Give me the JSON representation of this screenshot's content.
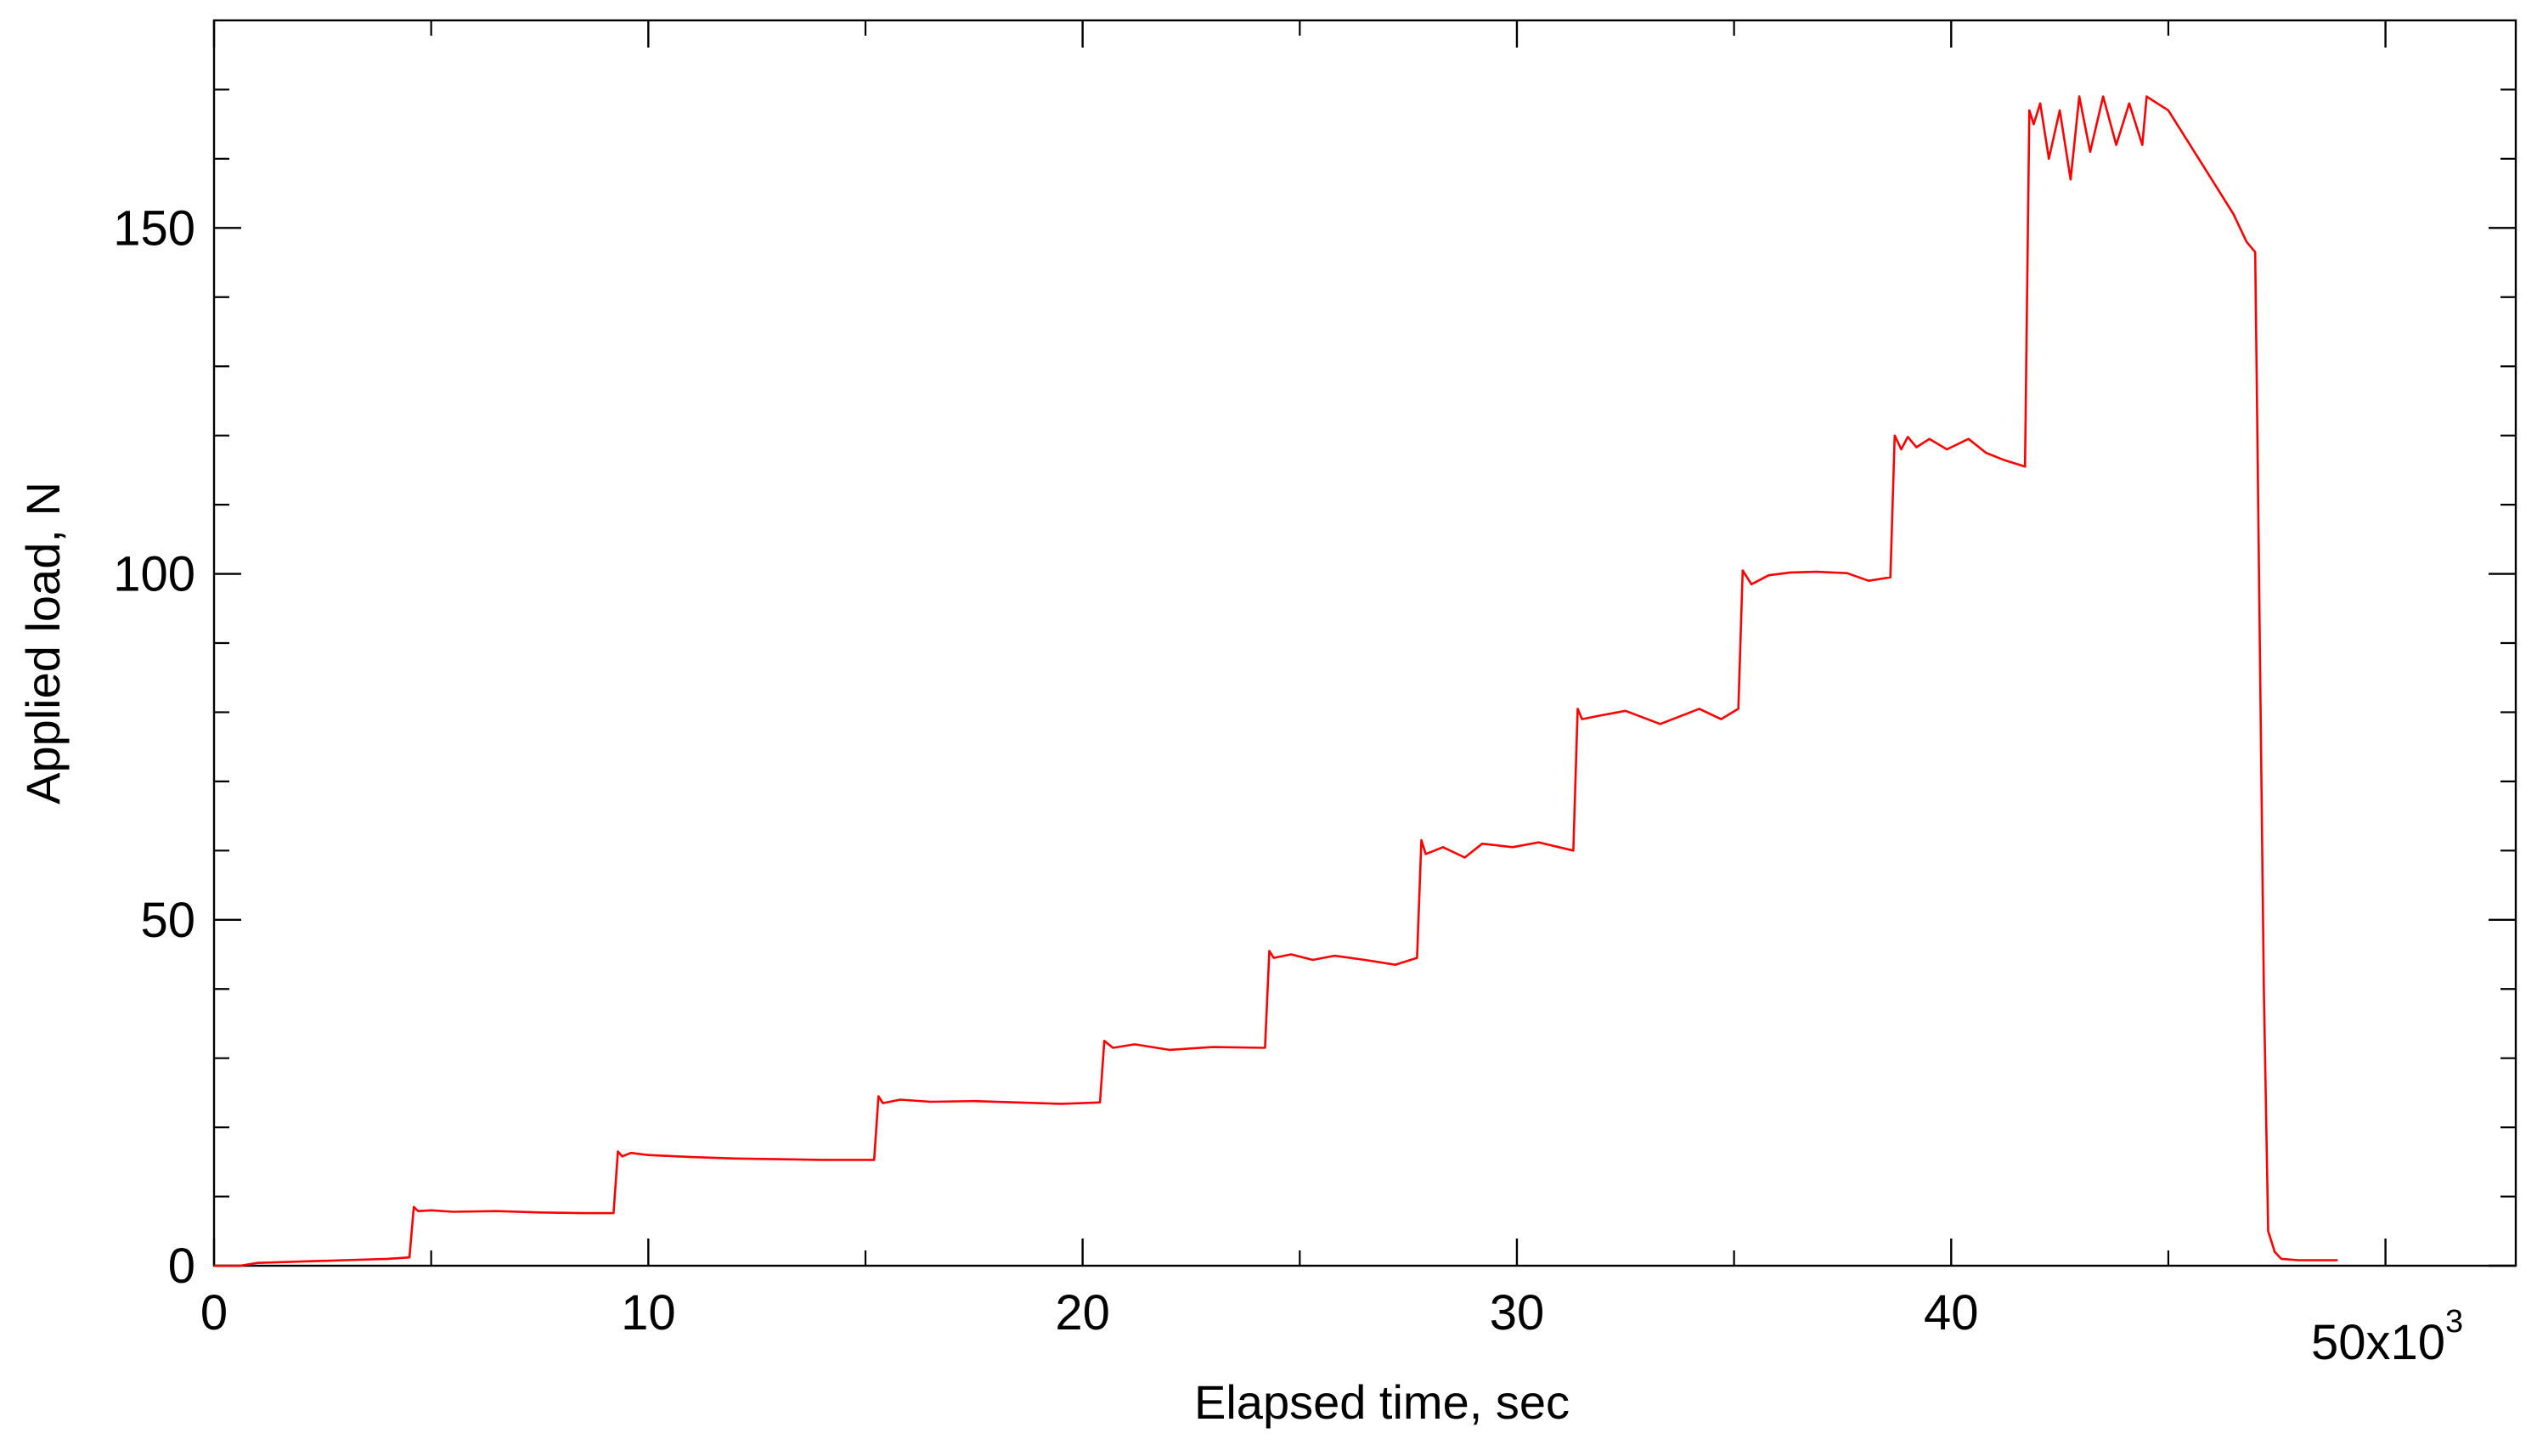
{
  "chart_data": {
    "type": "line",
    "title": "",
    "xlabel": "Elapsed time, sec",
    "ylabel": "Applied load, N",
    "xlim": [
      0,
      53000
    ],
    "ylim": [
      0,
      180
    ],
    "x_major_ticks": [
      0,
      10000,
      20000,
      30000,
      40000,
      50000
    ],
    "x_tick_labels": [
      "0",
      "10",
      "20",
      "30",
      "40",
      "50x10"
    ],
    "x_tick_label_superscript": "3",
    "y_major_ticks": [
      0,
      50,
      100,
      150
    ],
    "y_tick_labels": [
      "0",
      "50",
      "100",
      "150"
    ],
    "grid": false,
    "legend": "none",
    "series": [
      {
        "color": "#ff0000",
        "x": [
          0,
          600,
          1000,
          2000,
          3000,
          4000,
          4500,
          4600,
          4700,
          5000,
          5500,
          6500,
          7500,
          8500,
          9200,
          9300,
          9400,
          9600,
          10000,
          11000,
          12000,
          13000,
          14000,
          15200,
          15300,
          15400,
          15800,
          16500,
          17500,
          18500,
          19500,
          20400,
          20500,
          20700,
          21200,
          22000,
          23000,
          24200,
          24300,
          24400,
          24800,
          25300,
          25800,
          26500,
          27200,
          27700,
          27800,
          27900,
          28300,
          28800,
          29200,
          29900,
          30500,
          31300,
          31400,
          31500,
          31900,
          32500,
          33300,
          34200,
          34700,
          35100,
          35200,
          35400,
          35800,
          36300,
          36900,
          37600,
          38100,
          38600,
          38700,
          38850,
          39000,
          39200,
          39500,
          39900,
          40400,
          40800,
          41200,
          41700,
          41800,
          41900,
          42050,
          42250,
          42500,
          42750,
          42950,
          43200,
          43500,
          43800,
          44100,
          44400,
          44500,
          45000,
          45500,
          46000,
          46500,
          46800,
          47000,
          47050,
          47200,
          47300,
          47450,
          47600,
          48000,
          48500,
          48900
        ],
        "y": [
          0,
          0,
          0.4,
          0.6,
          0.8,
          1,
          1.2,
          8.5,
          7.9,
          8,
          7.8,
          7.9,
          7.7,
          7.6,
          7.6,
          16.5,
          15.8,
          16.3,
          16,
          15.7,
          15.5,
          15.4,
          15.3,
          15.3,
          24.5,
          23.5,
          24,
          23.7,
          23.8,
          23.6,
          23.4,
          23.6,
          32.5,
          31.5,
          32,
          31.2,
          31.6,
          31.5,
          45.5,
          44.5,
          45,
          44.2,
          44.8,
          44.2,
          43.5,
          44.5,
          61.5,
          59.5,
          60.5,
          59,
          61,
          60.5,
          61.2,
          60,
          80.5,
          79,
          79.5,
          80.2,
          78.3,
          80.5,
          79,
          80.5,
          100.5,
          98.5,
          99.8,
          100.2,
          100.3,
          100.1,
          99,
          99.5,
          120,
          118,
          119.8,
          118.3,
          119.5,
          118,
          119.5,
          117.5,
          116.5,
          115.5,
          167,
          165,
          168,
          160,
          167,
          157,
          169,
          161,
          169,
          162,
          168,
          162,
          169,
          167,
          162,
          157,
          152,
          148,
          146.5,
          120,
          40,
          5,
          2,
          1,
          0.8,
          0.8,
          0.8
        ]
      }
    ]
  }
}
